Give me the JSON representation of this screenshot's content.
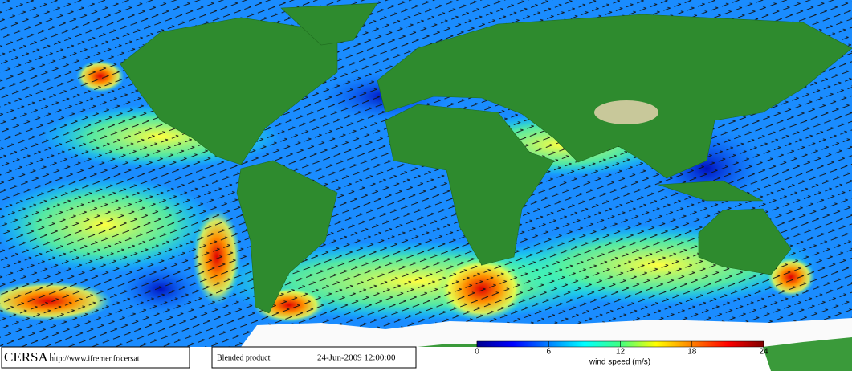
{
  "footer": {
    "logo": "CERSAT",
    "url": "http://www.ifremer.fr/cersat",
    "product": "Blended product",
    "date": "24-Jun-2009 12:00:00"
  },
  "colorbar": {
    "label": "wind speed (m/s)",
    "lim": [
      0,
      24
    ],
    "ticks": [
      0,
      6,
      12,
      18,
      24
    ],
    "colors": [
      "#00008f",
      "#0000ff",
      "#0080ff",
      "#00ffff",
      "#40ff80",
      "#ffff00",
      "#ff8000",
      "#ff0000",
      "#800000"
    ]
  }
}
